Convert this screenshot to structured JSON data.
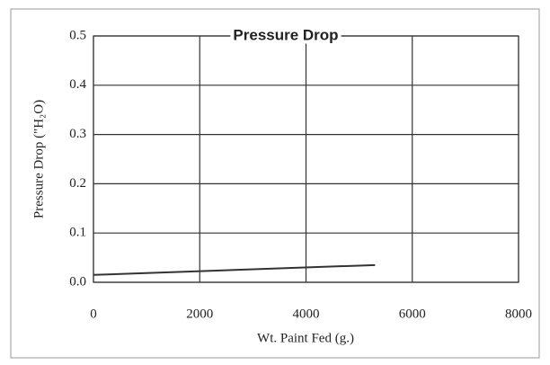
{
  "chart_data": {
    "type": "line",
    "title": "Pressure Drop",
    "x_label": "Wt. Paint Fed (g.)",
    "y_label": "Pressure Drop (\"H₂O)",
    "x": [
      0,
      5300
    ],
    "series": [
      {
        "name": "Pressure Drop",
        "color": "#333333",
        "values": [
          0.015,
          0.035
        ]
      }
    ],
    "xlim": [
      0,
      8000
    ],
    "xticks": [
      0,
      2000,
      4000,
      6000,
      8000
    ],
    "ylim": [
      0,
      0.5
    ],
    "yticks": [
      {
        "value": 0,
        "label": "0.0"
      },
      0.1,
      0.2,
      0.3,
      0.4,
      0.5
    ],
    "grid": true
  }
}
